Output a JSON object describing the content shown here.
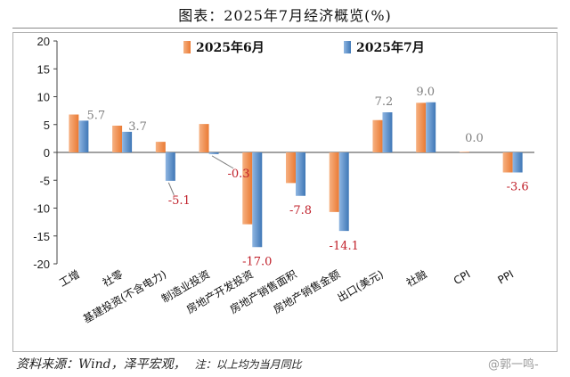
{
  "title": "图表：2025年7月经济概览(%)",
  "footer": {
    "source": "资料来源：Wind，泽平宏观，",
    "note": "注：以上均为当月同比"
  },
  "watermark": "@郭一鸣-",
  "colors": {
    "june": "#f0894a",
    "july": "#5b8fc7",
    "label_pos": "#7f7f7f",
    "label_neg": "#c0202a"
  },
  "chart_data": {
    "type": "bar",
    "title": "图表：2025年7月经济概览(%)",
    "xlabel": "",
    "ylabel": "",
    "ylim": [
      -20,
      20
    ],
    "yticks": [
      20,
      15,
      10,
      5,
      0,
      -5,
      -10,
      -15,
      -20
    ],
    "grid": false,
    "legend_position": "top-center",
    "categories": [
      "工增",
      "社零",
      "基建投资(不含电力)",
      "制造业投资",
      "房地产开发投资",
      "房地产销售面积",
      "房地产销售金额",
      "出口(美元)",
      "社融",
      "CPI",
      "PPI"
    ],
    "series": [
      {
        "name": "2025年6月",
        "values": [
          6.8,
          4.8,
          1.9,
          5.1,
          -12.9,
          -5.5,
          -10.7,
          5.8,
          8.9,
          0.1,
          -3.6
        ]
      },
      {
        "name": "2025年7月",
        "values": [
          5.7,
          3.7,
          -5.1,
          -0.3,
          -17.0,
          -7.8,
          -14.1,
          7.2,
          9.0,
          0.0,
          -3.6
        ]
      }
    ],
    "data_labels": [
      "5.7",
      "3.7",
      "-5.1",
      "-0.3",
      "-17.0",
      "-7.8",
      "-14.1",
      "7.2",
      "9.0",
      "0.0",
      "-3.6"
    ]
  }
}
